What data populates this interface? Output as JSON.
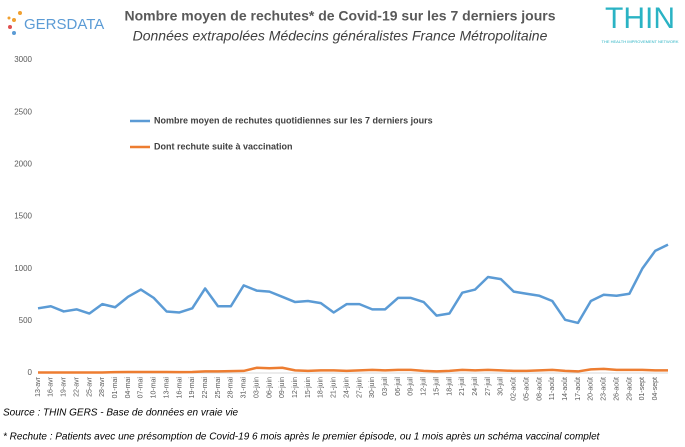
{
  "chart_data": {
    "type": "line",
    "title": "Nombre moyen de rechutes* de Covid-19 sur les 7 derniers jours",
    "subtitle": "Données extrapolées Médecins généralistes France Métropolitaine",
    "logos": [
      "GERSDATA",
      "THIN",
      "THE HEALTH IMPROVEMENT NETWORK"
    ],
    "source": "Source : THIN GERS - Base de données en vraie vie",
    "note": "* Rechute : Patients avec une présomption de Covid-19 6 mois après le premier épisode, ou 1 mois après un schéma vaccinal complet",
    "categories": [
      "13-avr",
      "16-avr",
      "19-avr",
      "22-avr",
      "25-avr",
      "28-avr",
      "01-mai",
      "04-mai",
      "07-mai",
      "10-mai",
      "13-mai",
      "16-mai",
      "19-mai",
      "22-mai",
      "25-mai",
      "28-mai",
      "31-mai",
      "03-juin",
      "06-juin",
      "09-juin",
      "12-juin",
      "15-juin",
      "18-juin",
      "21-juin",
      "24-juin",
      "27-juin",
      "30-juin",
      "03-juil",
      "06-juil",
      "09-juil",
      "12-juil",
      "15-juil",
      "18-juil",
      "21-juil",
      "24-juil",
      "27-juil",
      "30-juil",
      "02-août",
      "05-août",
      "08-août",
      "11-août",
      "14-août",
      "17-août",
      "20-août",
      "23-août",
      "26-août",
      "29-août",
      "01-sept",
      "04-sept",
      null
    ],
    "series": [
      {
        "name": "Nombre moyen de rechutes quotidiennes sur les 7 derniers jours",
        "color": "#5b9bd5",
        "values": [
          620,
          640,
          590,
          610,
          570,
          660,
          630,
          730,
          800,
          720,
          590,
          580,
          620,
          810,
          640,
          640,
          840,
          790,
          780,
          730,
          680,
          690,
          670,
          580,
          660,
          660,
          610,
          610,
          720,
          720,
          680,
          550,
          570,
          770,
          800,
          920,
          900,
          780,
          760,
          740,
          690,
          510,
          480,
          690,
          750,
          740,
          760,
          1000,
          1170,
          1230
        ]
      },
      {
        "name": "Dont rechute suite à vaccination",
        "color": "#ed7d31",
        "values": [
          5,
          5,
          5,
          5,
          5,
          5,
          8,
          10,
          10,
          10,
          10,
          8,
          10,
          15,
          15,
          18,
          20,
          50,
          45,
          50,
          25,
          20,
          25,
          25,
          20,
          25,
          30,
          25,
          30,
          30,
          20,
          15,
          20,
          30,
          25,
          30,
          25,
          20,
          20,
          25,
          30,
          20,
          15,
          35,
          40,
          30,
          30,
          30,
          25,
          25
        ]
      }
    ],
    "ylim": [
      0,
      3000
    ],
    "yticks": [
      0,
      500,
      1000,
      1500,
      2000,
      2500,
      3000
    ],
    "grid": false,
    "legend": "top-left"
  }
}
